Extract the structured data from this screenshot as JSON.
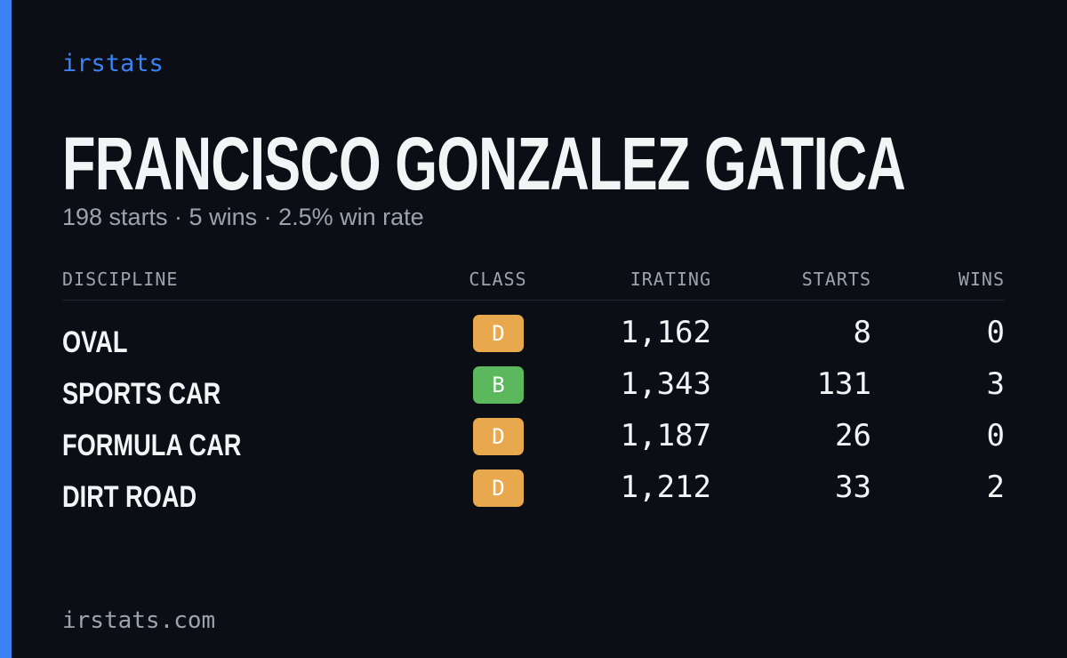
{
  "brand": "irstats",
  "driver": {
    "name": "FRANCISCO GONZALEZ GATICA",
    "summary": "198 starts · 5 wins · 2.5% win rate"
  },
  "table": {
    "headers": [
      "DISCIPLINE",
      "CLASS",
      "IRATING",
      "STARTS",
      "WINS"
    ],
    "rows": [
      {
        "discipline": "OVAL",
        "class": "D",
        "class_color": "#e8a94e",
        "irating": "1,162",
        "starts": "8",
        "wins": "0"
      },
      {
        "discipline": "SPORTS CAR",
        "class": "B",
        "class_color": "#5cb85c",
        "irating": "1,343",
        "starts": "131",
        "wins": "3"
      },
      {
        "discipline": "FORMULA CAR",
        "class": "D",
        "class_color": "#e8a94e",
        "irating": "1,187",
        "starts": "26",
        "wins": "0"
      },
      {
        "discipline": "DIRT ROAD",
        "class": "D",
        "class_color": "#e8a94e",
        "irating": "1,212",
        "starts": "33",
        "wins": "2"
      }
    ]
  },
  "footer": "irstats.com"
}
